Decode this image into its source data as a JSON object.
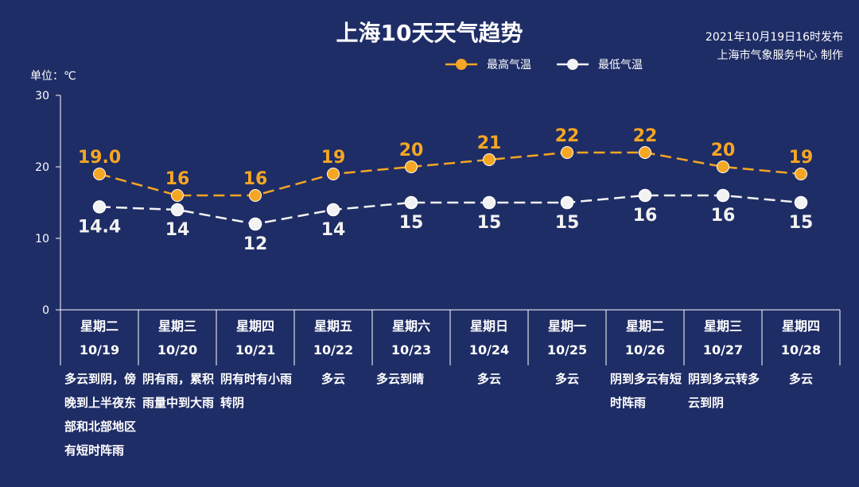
{
  "title": "上海10天天气趋势",
  "publish": {
    "line1": "2021年10月19日16时发布",
    "line2": "上海市气象服务中心 制作"
  },
  "unit_label": "单位：℃",
  "colors": {
    "background": "#1f2d66",
    "high": "#f5a623",
    "low": "#f2f2f2",
    "axis": "#ffffff"
  },
  "chart_data": {
    "type": "line",
    "title": "上海10天天气趋势",
    "ylabel": "单位：℃",
    "ylim": [
      0,
      30
    ],
    "yticks": [
      0,
      10,
      20,
      30
    ],
    "categories": [
      "10/19",
      "10/20",
      "10/21",
      "10/22",
      "10/23",
      "10/24",
      "10/25",
      "10/26",
      "10/27",
      "10/28"
    ],
    "weekdays": [
      "星期二",
      "星期三",
      "星期四",
      "星期五",
      "星期六",
      "星期日",
      "星期一",
      "星期二",
      "星期三",
      "星期四"
    ],
    "series": [
      {
        "name": "最高气温",
        "values": [
          19.0,
          16,
          16,
          19,
          20,
          21,
          22,
          22,
          20,
          19
        ],
        "labels": [
          "19.0",
          "16",
          "16",
          "19",
          "20",
          "21",
          "22",
          "22",
          "20",
          "19"
        ]
      },
      {
        "name": "最低气温",
        "values": [
          14.4,
          14,
          12,
          14,
          15,
          15,
          15,
          16,
          16,
          15
        ],
        "labels": [
          "14.4",
          "14",
          "12",
          "14",
          "15",
          "15",
          "15",
          "16",
          "16",
          "15"
        ]
      }
    ],
    "descriptions": [
      "多云到阴，傍晚到上半夜东部和北部地区有短时阵雨",
      "阴有雨，累积雨量中到大雨",
      "阴有时有小雨转阴",
      "多云",
      "多云到晴",
      "多云",
      "多云",
      "阴到多云有短时阵雨",
      "阴到多云转多云到阴",
      "多云"
    ]
  }
}
